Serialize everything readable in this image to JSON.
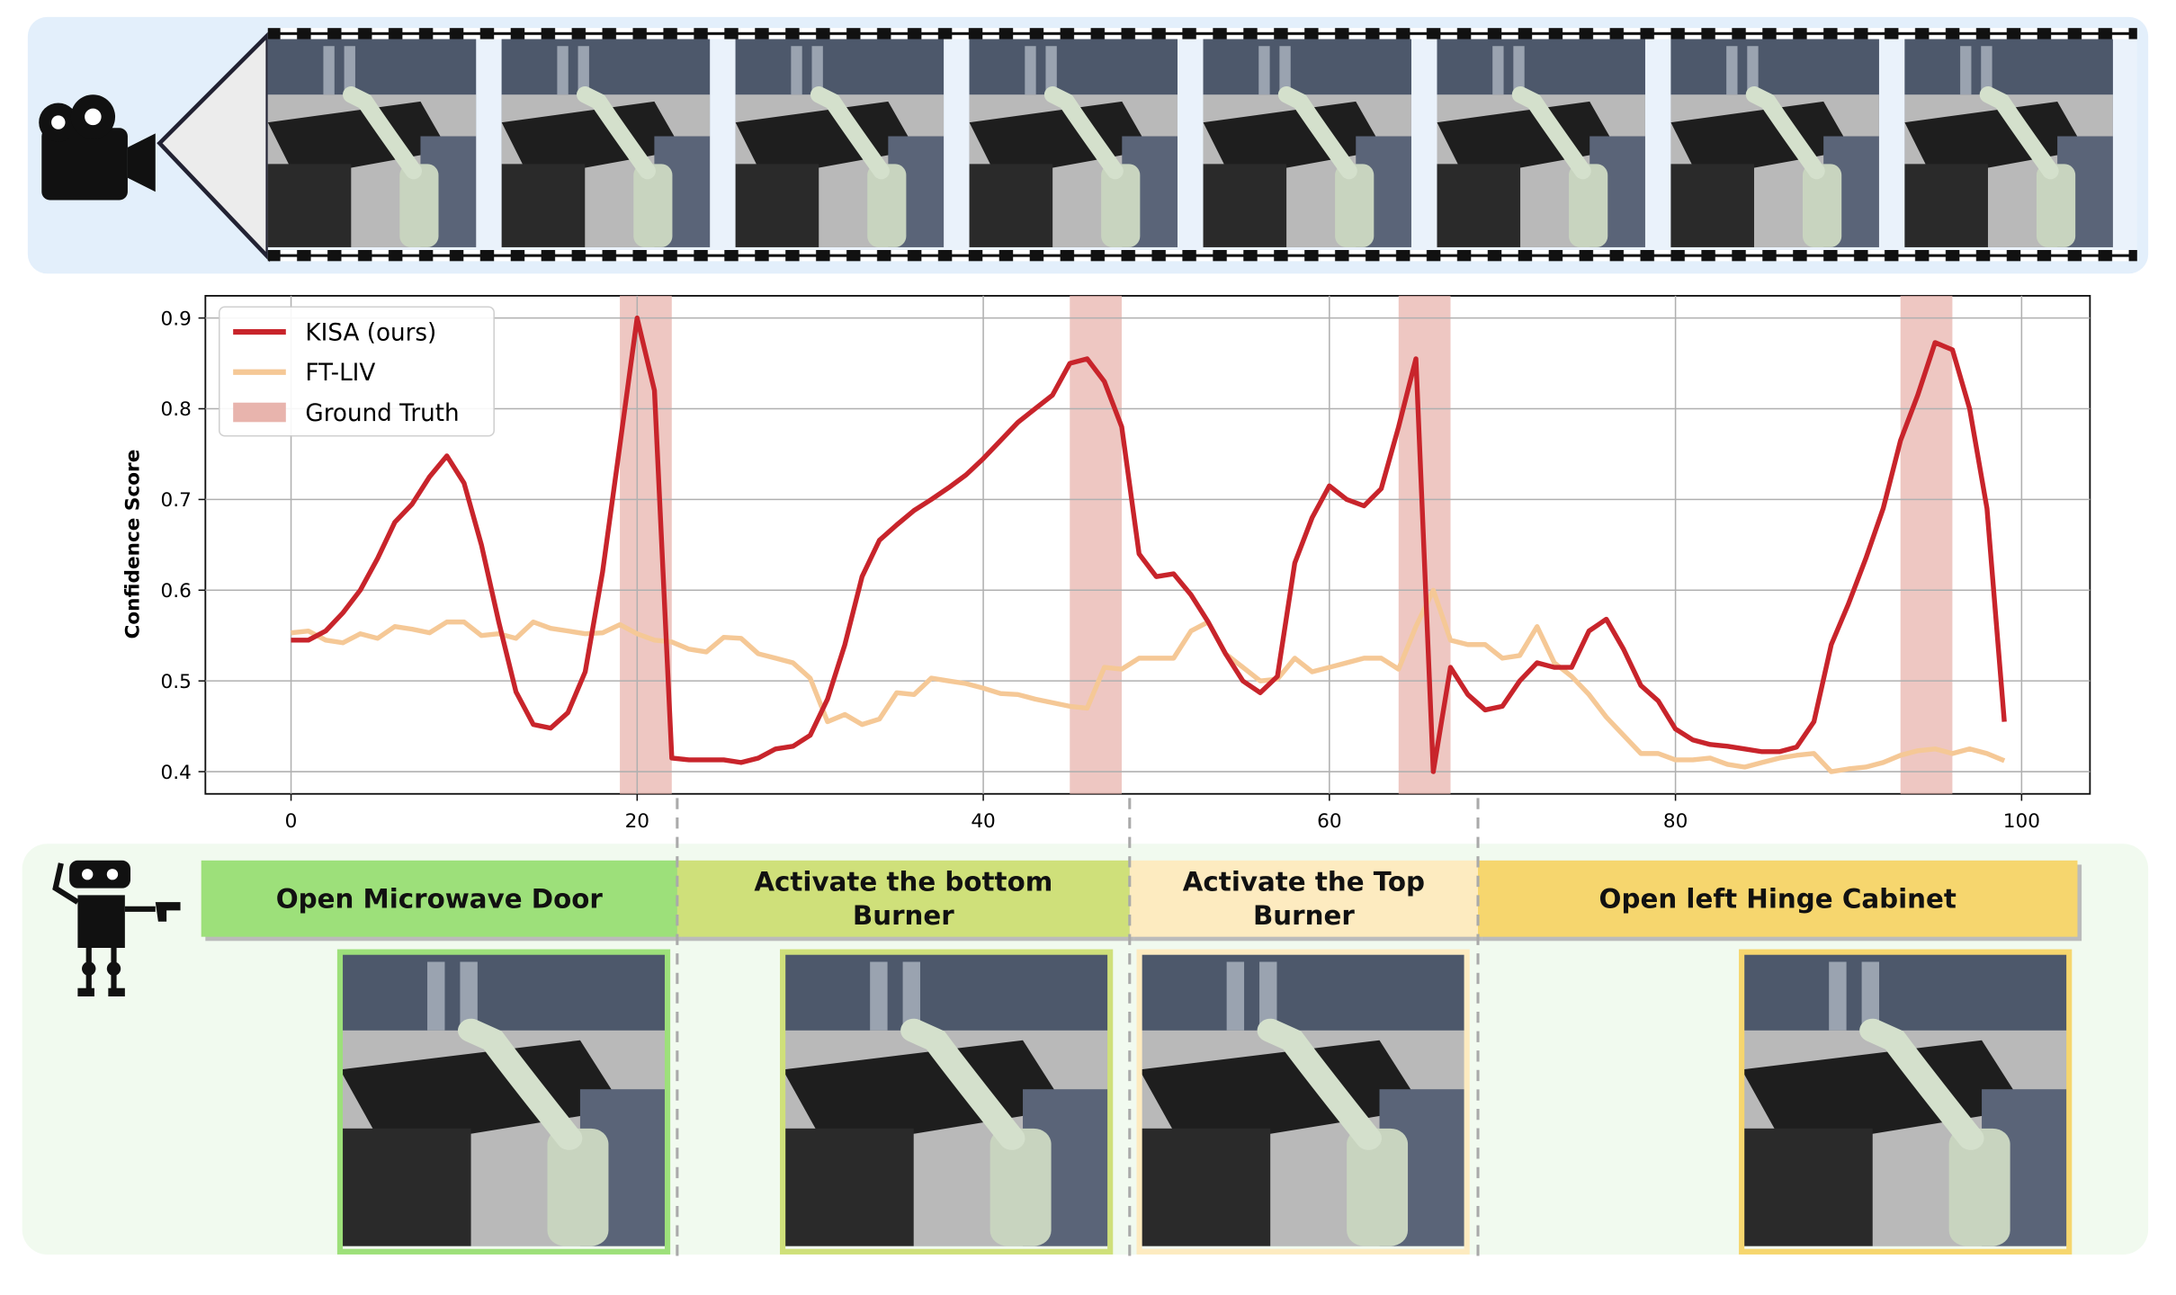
{
  "chart_data": {
    "type": "line",
    "y_label": "Confidence Score",
    "x": [
      0,
      1,
      2,
      3,
      4,
      5,
      6,
      7,
      8,
      9,
      10,
      11,
      12,
      13,
      14,
      15,
      16,
      17,
      18,
      19,
      20,
      21,
      22,
      23,
      24,
      25,
      26,
      27,
      28,
      29,
      30,
      31,
      32,
      33,
      34,
      35,
      36,
      37,
      38,
      39,
      40,
      41,
      42,
      43,
      44,
      45,
      46,
      47,
      48,
      49,
      50,
      51,
      52,
      53,
      54,
      55,
      56,
      57,
      58,
      59,
      60,
      61,
      62,
      63,
      64,
      65,
      66,
      67,
      68,
      69,
      70,
      71,
      72,
      73,
      74,
      75,
      76,
      77,
      78,
      79,
      80,
      81,
      82,
      83,
      84,
      85,
      86,
      87,
      88,
      89,
      90,
      91,
      92,
      93,
      94,
      95,
      96,
      97,
      98,
      99
    ],
    "series": [
      {
        "name": "KISA (ours)",
        "color": "#c8242b",
        "values": [
          0.545,
          0.545,
          0.555,
          0.575,
          0.6,
          0.635,
          0.675,
          0.695,
          0.725,
          0.748,
          0.718,
          0.65,
          0.565,
          0.488,
          0.452,
          0.448,
          0.465,
          0.51,
          0.62,
          0.76,
          0.9,
          0.82,
          0.415,
          0.413,
          0.413,
          0.413,
          0.41,
          0.415,
          0.425,
          0.428,
          0.44,
          0.48,
          0.54,
          0.615,
          0.655,
          0.672,
          0.688,
          0.7,
          0.713,
          0.727,
          0.745,
          0.765,
          0.785,
          0.8,
          0.815,
          0.85,
          0.855,
          0.83,
          0.78,
          0.64,
          0.615,
          0.618,
          0.595,
          0.565,
          0.53,
          0.5,
          0.487,
          0.505,
          0.63,
          0.68,
          0.715,
          0.7,
          0.693,
          0.712,
          0.78,
          0.855,
          0.4,
          0.515,
          0.485,
          0.468,
          0.472,
          0.5,
          0.52,
          0.515,
          0.515,
          0.555,
          0.568,
          0.535,
          0.495,
          0.478,
          0.447,
          0.435,
          0.43,
          0.428,
          0.425,
          0.422,
          0.422,
          0.427,
          0.455,
          0.54,
          0.585,
          0.635,
          0.69,
          0.765,
          0.815,
          0.873,
          0.865,
          0.8,
          0.69,
          0.455
        ]
      },
      {
        "name": "FT-LIV",
        "color": "#f5c896",
        "values": [
          0.553,
          0.555,
          0.545,
          0.542,
          0.552,
          0.547,
          0.56,
          0.557,
          0.553,
          0.565,
          0.565,
          0.55,
          0.552,
          0.547,
          0.565,
          0.558,
          0.555,
          0.552,
          0.553,
          0.562,
          0.552,
          0.545,
          0.543,
          0.535,
          0.532,
          0.548,
          0.547,
          0.53,
          0.525,
          0.52,
          0.503,
          0.455,
          0.463,
          0.452,
          0.458,
          0.487,
          0.485,
          0.503,
          0.5,
          0.497,
          0.492,
          0.486,
          0.485,
          0.48,
          0.476,
          0.472,
          0.47,
          0.515,
          0.513,
          0.525,
          0.525,
          0.525,
          0.555,
          0.565,
          0.53,
          0.515,
          0.5,
          0.502,
          0.525,
          0.51,
          0.515,
          0.52,
          0.525,
          0.525,
          0.513,
          0.56,
          0.6,
          0.545,
          0.54,
          0.54,
          0.525,
          0.528,
          0.56,
          0.52,
          0.505,
          0.485,
          0.46,
          0.44,
          0.42,
          0.42,
          0.413,
          0.413,
          0.415,
          0.408,
          0.405,
          0.41,
          0.415,
          0.418,
          0.42,
          0.4,
          0.403,
          0.405,
          0.41,
          0.418,
          0.423,
          0.425,
          0.42,
          0.425,
          0.42,
          0.412
        ]
      },
      {
        "name": "Ground Truth",
        "color": "#e8b4ad",
        "ranges": [
          [
            19,
            22
          ],
          [
            45,
            48
          ],
          [
            64,
            67
          ],
          [
            93,
            96
          ]
        ]
      }
    ],
    "xlim": [
      -4.95,
      103.95
    ],
    "ylim": [
      0.3755,
      0.9245
    ],
    "xticks": [
      0,
      20,
      40,
      60,
      80,
      100
    ],
    "yticks": [
      0.4,
      0.5,
      0.6,
      0.7,
      0.8,
      0.9
    ],
    "grid": true,
    "legend": "upper left",
    "tasks": [
      "Open Microwave Door",
      "Activate the bottom Burner",
      "Activate the Top Burner",
      "Open left Hinge Cabinet"
    ],
    "task_colors": [
      "#9de07a",
      "#cfe07a",
      "#fdebc0",
      "#f6d66e"
    ]
  }
}
